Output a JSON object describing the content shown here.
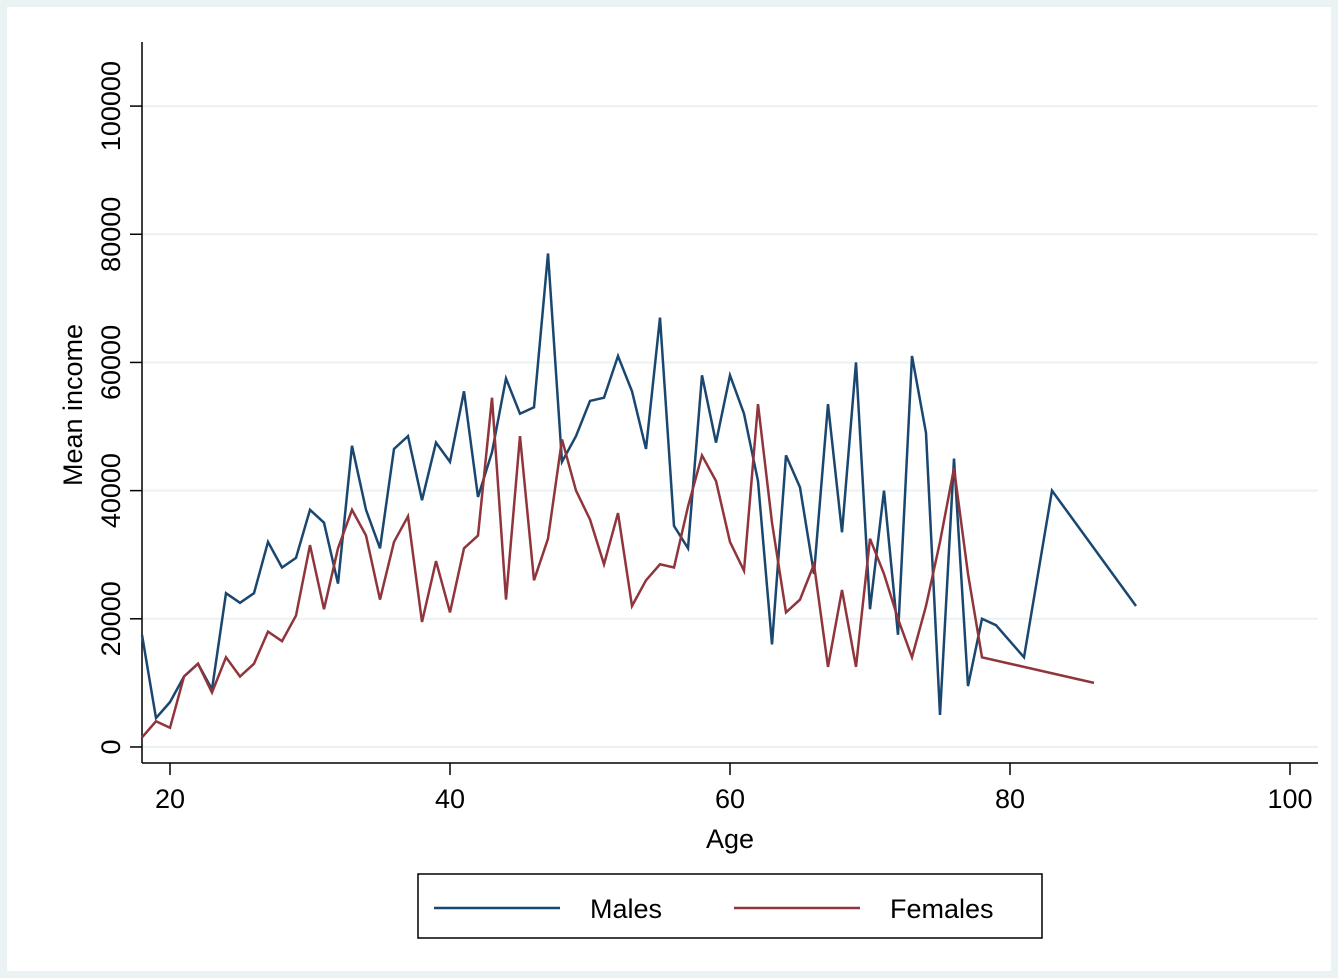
{
  "chart_data": {
    "type": "line",
    "xlabel": "Age",
    "ylabel": "Mean income",
    "xlim": [
      18,
      102
    ],
    "ylim": [
      -2500,
      110000
    ],
    "xticks": [
      20,
      40,
      60,
      80,
      100
    ],
    "xtick_labels": [
      "20",
      "40",
      "60",
      "80",
      "100"
    ],
    "yticks": [
      0,
      20000,
      40000,
      60000,
      80000,
      100000
    ],
    "ytick_labels": [
      "0",
      "20000",
      "40000",
      "60000",
      "80000",
      "100000"
    ],
    "grid": true,
    "legend_position": "bottom",
    "series": [
      {
        "name": "Males",
        "color": "#1a476f",
        "x": [
          18,
          19,
          20,
          21,
          22,
          23,
          24,
          25,
          26,
          27,
          28,
          29,
          30,
          31,
          32,
          33,
          34,
          35,
          36,
          37,
          38,
          39,
          40,
          41,
          42,
          43,
          44,
          45,
          46,
          47,
          48,
          49,
          50,
          51,
          52,
          53,
          54,
          55,
          56,
          57,
          58,
          59,
          60,
          61,
          62,
          63,
          64,
          65,
          66,
          67,
          68,
          69,
          70,
          71,
          72,
          73,
          74,
          75,
          76,
          77,
          78,
          79,
          81,
          83,
          89
        ],
        "y": [
          17500,
          4500,
          7000,
          11000,
          13000,
          9000,
          24000,
          22500,
          24000,
          32000,
          28000,
          29500,
          37000,
          35000,
          25500,
          47000,
          37000,
          31000,
          46500,
          48500,
          38500,
          47500,
          44500,
          55500,
          39000,
          46000,
          57500,
          52000,
          53000,
          77000,
          44500,
          48500,
          54000,
          54500,
          61000,
          55500,
          46500,
          67000,
          34500,
          31000,
          58000,
          47500,
          58000,
          52000,
          41500,
          16000,
          45500,
          40500,
          27000,
          53500,
          33500,
          60000,
          21500,
          40000,
          17500,
          61000,
          49000,
          5000,
          45000,
          9500,
          20000,
          19000,
          14000,
          40000,
          22000
        ]
      },
      {
        "name": "Females",
        "color": "#90353b",
        "x": [
          18,
          19,
          20,
          21,
          22,
          23,
          24,
          25,
          26,
          27,
          28,
          29,
          30,
          31,
          32,
          33,
          34,
          35,
          36,
          37,
          38,
          39,
          40,
          41,
          42,
          43,
          44,
          45,
          46,
          47,
          48,
          49,
          50,
          51,
          52,
          53,
          54,
          55,
          56,
          57,
          58,
          59,
          60,
          61,
          62,
          63,
          64,
          65,
          66,
          67,
          68,
          69,
          70,
          71,
          72,
          73,
          74,
          75,
          76,
          77,
          78,
          86
        ],
        "y": [
          1500,
          4000,
          3000,
          11000,
          13000,
          8500,
          14000,
          11000,
          13000,
          18000,
          16500,
          20500,
          31500,
          21500,
          31000,
          37000,
          33000,
          23000,
          32000,
          36000,
          19500,
          29000,
          21000,
          31000,
          33000,
          54500,
          23000,
          48500,
          26000,
          32500,
          48000,
          40000,
          35500,
          28500,
          36500,
          22000,
          26000,
          28500,
          28000,
          37500,
          45500,
          41500,
          32000,
          27500,
          53500,
          35000,
          21000,
          23000,
          28500,
          12500,
          24500,
          12500,
          32500,
          27000,
          20000,
          14000,
          22000,
          32000,
          43500,
          27000,
          14000,
          10000
        ]
      }
    ]
  }
}
